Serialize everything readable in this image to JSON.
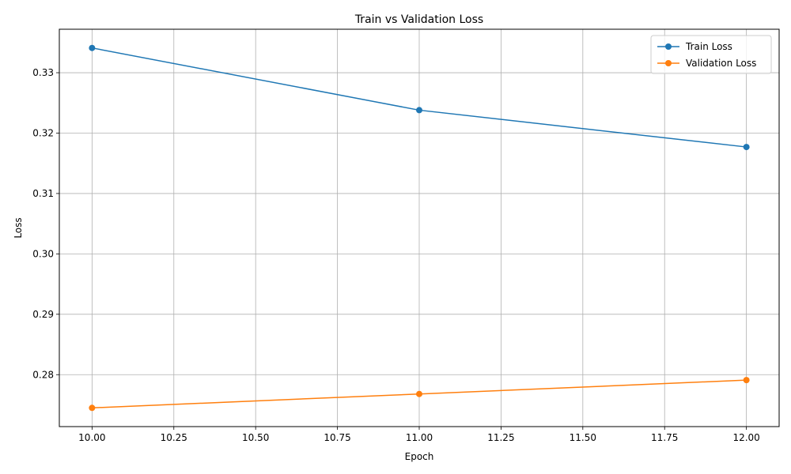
{
  "chart_data": {
    "type": "line",
    "title": "Train vs Validation Loss",
    "xlabel": "Epoch",
    "ylabel": "Loss",
    "xlim": [
      9.9,
      12.1
    ],
    "ylim": [
      0.2714,
      0.3372
    ],
    "xticks": [
      "10.00",
      "10.25",
      "10.50",
      "10.75",
      "11.00",
      "11.25",
      "11.50",
      "11.75",
      "12.00"
    ],
    "xtick_values": [
      10.0,
      10.25,
      10.5,
      10.75,
      11.0,
      11.25,
      11.5,
      11.75,
      12.0
    ],
    "yticks": [
      "0.28",
      "0.29",
      "0.30",
      "0.31",
      "0.32",
      "0.33"
    ],
    "ytick_values": [
      0.28,
      0.29,
      0.3,
      0.31,
      0.32,
      0.33
    ],
    "grid": true,
    "legend": "top-right",
    "x": [
      10,
      11,
      12
    ],
    "series": [
      {
        "name": "Train Loss",
        "values": [
          0.3341,
          0.3238,
          0.3177
        ],
        "color": "#1f77b4"
      },
      {
        "name": "Validation Loss",
        "values": [
          0.2745,
          0.2768,
          0.2791
        ],
        "color": "#ff7f0e"
      }
    ]
  }
}
